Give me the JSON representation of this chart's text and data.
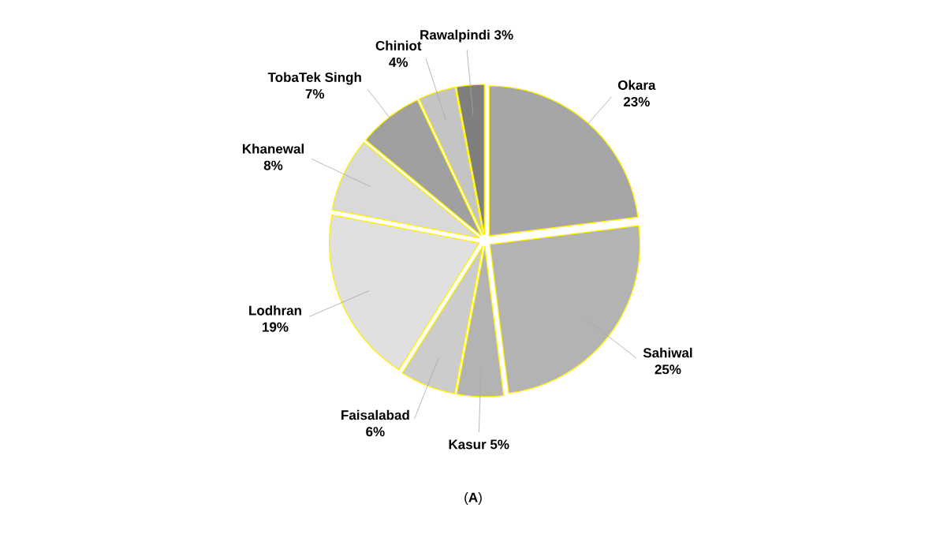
{
  "chart_data": {
    "type": "pie",
    "categories": [
      "Okara",
      "Sahiwal",
      "Kasur",
      "Faisalabad",
      "Lodhran",
      "Khanewal",
      "TobaTek Singh",
      "Chiniot",
      "Rawalpindi"
    ],
    "values": [
      23,
      25,
      5,
      6,
      19,
      8,
      7,
      4,
      3
    ],
    "value_labels": [
      "23%",
      "25%",
      "5%",
      "6%",
      "19%",
      "8%",
      "7%",
      "4%",
      "3%"
    ],
    "colors": [
      "#a6a6a6",
      "#b3b3b3",
      "#b3b3b3",
      "#cccccc",
      "#e0e0e0",
      "#d9d9d9",
      "#a0a0a0",
      "#c4c4c4",
      "#7f7f7f"
    ],
    "annotations": [
      "(**A**)"
    ]
  }
}
